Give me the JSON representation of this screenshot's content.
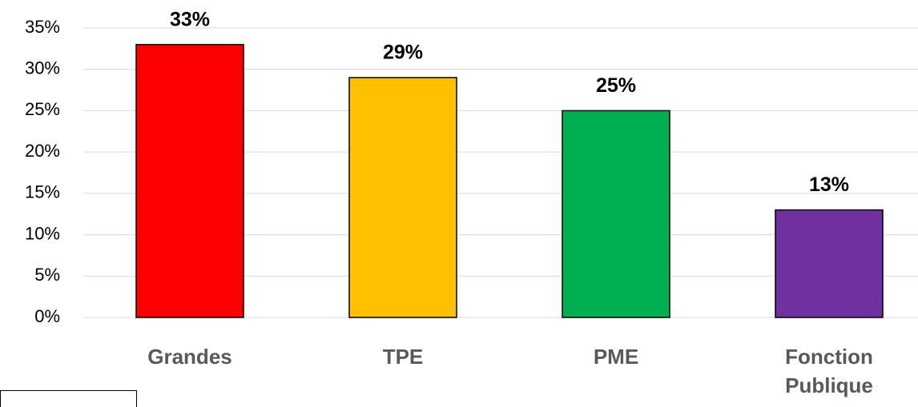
{
  "chart_data": {
    "type": "bar",
    "categories": [
      "Grandes",
      "TPE",
      "PME",
      "Fonction Publique"
    ],
    "values": [
      33,
      29,
      25,
      13
    ],
    "value_labels": [
      "33%",
      "29%",
      "25%",
      "13%"
    ],
    "colors": [
      "#ff0000",
      "#ffc000",
      "#00b050",
      "#7030a0"
    ],
    "ylim": [
      0,
      35
    ],
    "yticks": [
      {
        "value": 0,
        "label": "0%"
      },
      {
        "value": 5,
        "label": "5%"
      },
      {
        "value": 10,
        "label": "10%"
      },
      {
        "value": 15,
        "label": "15%"
      },
      {
        "value": 20,
        "label": "20%"
      },
      {
        "value": 25,
        "label": "25%"
      },
      {
        "value": 30,
        "label": "30%"
      },
      {
        "value": 35,
        "label": "35%"
      }
    ],
    "grid": true
  }
}
